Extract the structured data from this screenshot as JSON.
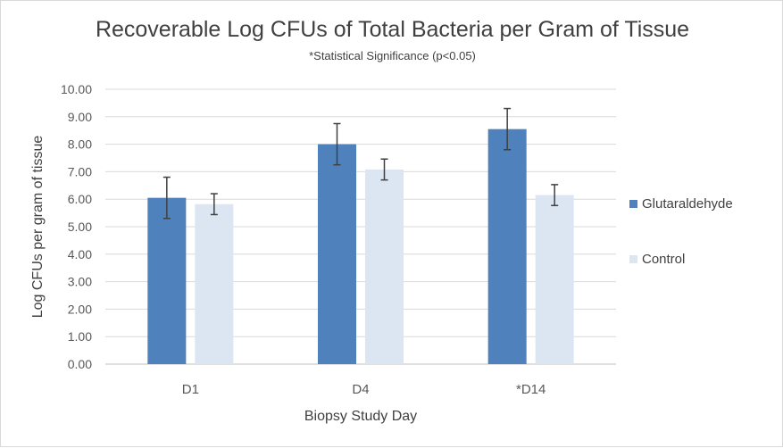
{
  "chart_data": {
    "type": "bar",
    "title": "Recoverable Log CFUs of Total Bacteria per Gram of Tissue",
    "subtitle": "*Statistical Significance (p<0.05)",
    "xlabel": "Biopsy Study Day",
    "ylabel": "Log CFUs per gram of tissue",
    "categories": [
      "D1",
      "D4",
      "*D14"
    ],
    "ylim": [
      0,
      10
    ],
    "y_ticks": [
      "0.00",
      "1.00",
      "2.00",
      "3.00",
      "4.00",
      "5.00",
      "6.00",
      "7.00",
      "8.00",
      "9.00",
      "10.00"
    ],
    "grid": true,
    "legend_position": "right",
    "series": [
      {
        "name": "Glutaraldehyde",
        "color": "#4f81bd",
        "values": [
          6.05,
          8.0,
          8.55
        ],
        "error": [
          0.75,
          0.75,
          0.75
        ]
      },
      {
        "name": "Control",
        "color": "#dce6f2",
        "values": [
          5.82,
          7.08,
          6.15
        ],
        "error": [
          0.38,
          0.38,
          0.38
        ]
      }
    ]
  }
}
